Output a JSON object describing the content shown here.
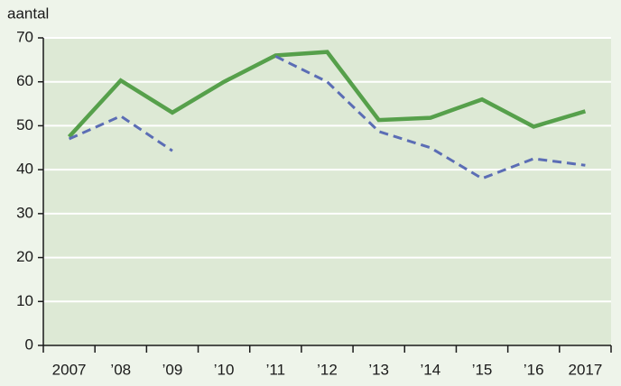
{
  "chart_data": {
    "type": "line",
    "y_label": "aantal",
    "categories": [
      "2007",
      "’08",
      "’09",
      "’10",
      "’11",
      "’12",
      "’13",
      "’14",
      "’15",
      "’16",
      "2017"
    ],
    "series": [
      {
        "color": "#56a04b",
        "dash": false,
        "values": [
          47.5,
          60.3,
          53,
          60,
          66,
          66.8,
          51.3,
          51.8,
          56,
          49.8,
          53.3
        ]
      },
      {
        "color": "#5b6db5",
        "dash": true,
        "values": [
          47,
          52.2,
          44.3,
          null,
          65.8,
          60,
          48.7,
          45,
          38,
          42.5,
          41
        ]
      }
    ],
    "ylim": [
      0,
      70
    ],
    "yticks": [
      0,
      10,
      20,
      30,
      40,
      50,
      60,
      70
    ],
    "grid": true
  }
}
